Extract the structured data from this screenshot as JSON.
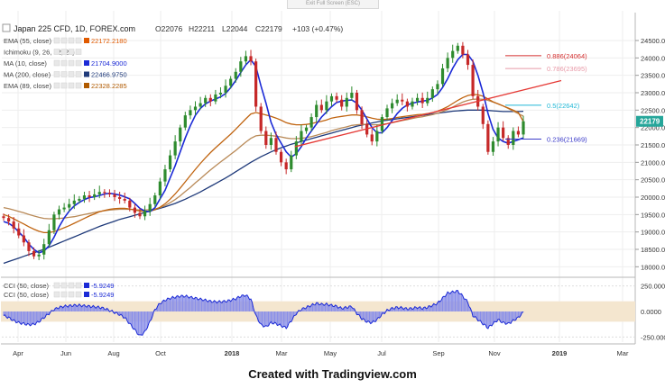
{
  "top_button": {
    "label": "Exit Full Screen (ESC)"
  },
  "header": {
    "symbol": "Japan 225 CFD, 1D, FOREX.com",
    "ohlc": [
      {
        "label": "O",
        "value": "22076",
        "color": "#3b3bc9"
      },
      {
        "label": "H",
        "value": "22211",
        "color": "#3b3bc9"
      },
      {
        "label": "L",
        "value": "22044",
        "color": "#3b3bc9"
      },
      {
        "label": "C",
        "value": "22179",
        "color": "#3b3bc9"
      }
    ],
    "change": "+103 (+0.47%)"
  },
  "indicator_legend": [
    {
      "label": "EMA (55, close)",
      "value": "22172.2180",
      "color": "#e05a00"
    },
    {
      "label": "Ichimoku (9, 26, 52, 26)",
      "value": "",
      "color": "#9a9a9a"
    },
    {
      "label": "MA (10, close)",
      "value": "21704.9000",
      "color": "#1b2ad6"
    },
    {
      "label": "MA (200, close)",
      "value": "22466.9750",
      "color": "#1f3a7a"
    },
    {
      "label": "EMA (89, close)",
      "value": "22328.2285",
      "color": "#b05a00"
    }
  ],
  "cci_legend": [
    {
      "label": "CCI (50, close)",
      "value": "-5.9249"
    },
    {
      "label": "CCI (50, close)",
      "value": "-5.9249"
    }
  ],
  "price_axis": {
    "ticks": [
      "24500.0",
      "24000.0",
      "23500.0",
      "23000.0",
      "22500.0",
      "22000.0",
      "21500.0",
      "21000.0",
      "20500.0",
      "20000.0",
      "19500.0",
      "19000.0",
      "18500.0",
      "18000.0"
    ],
    "last_price": "22179",
    "last_price_color": "#26a69a"
  },
  "cci_axis": {
    "ticks": [
      "250.000",
      "0.0000",
      "-250.000"
    ]
  },
  "x_axis": {
    "ticks": [
      "Apr",
      "Jun",
      "Aug",
      "Oct",
      "2018",
      "Mar",
      "May",
      "Jul",
      "Sep",
      "Nov",
      "2019",
      "Mar"
    ]
  },
  "fib_levels": [
    {
      "label": "0.886(24064)",
      "color": "#d32f2f"
    },
    {
      "label": "0.786(23695)",
      "color": "#e89aa8"
    },
    {
      "label": "0.5(22642)",
      "color": "#22b8d6"
    },
    {
      "label": "0.236(21669)",
      "color": "#3b3bc9"
    }
  ],
  "chart_data": {
    "type": "candlestick",
    "title": "Japan 225 CFD, 1D, FOREX.com",
    "ylim": [
      17750,
      25250
    ],
    "cci_ylim": [
      -300,
      300
    ],
    "x_ticks": [
      "Apr",
      "Jun",
      "Aug",
      "Oct",
      "2018",
      "Mar",
      "May",
      "Jul",
      "Sep",
      "Nov",
      "2019",
      "Mar"
    ],
    "close": [
      19400,
      19300,
      19100,
      18900,
      18700,
      18450,
      18300,
      18350,
      18650,
      19050,
      19500,
      19650,
      19700,
      19800,
      19900,
      19950,
      20050,
      20000,
      20080,
      20150,
      20120,
      20080,
      20000,
      19950,
      19900,
      19700,
      19550,
      19450,
      19600,
      19800,
      20050,
      20450,
      20800,
      21200,
      21600,
      22000,
      22350,
      22500,
      22600,
      22700,
      22850,
      22750,
      22950,
      23000,
      23200,
      23400,
      23600,
      23900,
      24050,
      23900,
      22600,
      21900,
      21500,
      21700,
      21300,
      21000,
      20800,
      21200,
      21600,
      21900,
      22000,
      22300,
      22650,
      22500,
      22750,
      22900,
      22800,
      22600,
      22850,
      23000,
      22500,
      22100,
      21800,
      21600,
      21900,
      22300,
      22550,
      22700,
      22800,
      22750,
      22600,
      22750,
      22850,
      22700,
      22850,
      23100,
      23250,
      23700,
      24000,
      24200,
      24350,
      24100,
      23800,
      22900,
      22600,
      22100,
      21300,
      21600,
      22000,
      21700,
      21500,
      21900,
      21800,
      22179
    ],
    "ma10": [
      19300,
      19250,
      19150,
      19000,
      18850,
      18650,
      18500,
      18400,
      18450,
      18600,
      18850,
      19150,
      19400,
      19600,
      19750,
      19850,
      19930,
      19990,
      20010,
      20050,
      20090,
      20110,
      20090,
      20060,
      20010,
      19950,
      19820,
      19680,
      19600,
      19580,
      19700,
      19950,
      20200,
      20550,
      20900,
      21300,
      21700,
      22050,
      22350,
      22550,
      22680,
      22760,
      22820,
      22880,
      22980,
      23150,
      23350,
      23580,
      23800,
      23950,
      23750,
      23200,
      22700,
      22150,
      21800,
      21550,
      21300,
      21150,
      21250,
      21450,
      21700,
      21900,
      22100,
      22300,
      22450,
      22600,
      22720,
      22760,
      22780,
      22790,
      22700,
      22500,
      22250,
      22000,
      21850,
      21850,
      22000,
      22200,
      22400,
      22550,
      22650,
      22700,
      22730,
      22760,
      22780,
      22850,
      22950,
      23150,
      23400,
      23700,
      23950,
      24100,
      24100,
      23900,
      23500,
      23000,
      22400,
      21950,
      21700,
      21600,
      21550,
      21600,
      21650,
      21705
    ],
    "ema55": [
      19500,
      19450,
      19380,
      19300,
      19230,
      19150,
      19080,
      19020,
      18980,
      18980,
      19010,
      19060,
      19120,
      19180,
      19250,
      19320,
      19390,
      19460,
      19520,
      19580,
      19620,
      19650,
      19670,
      19680,
      19680,
      19660,
      19630,
      19600,
      19590,
      19600,
      19640,
      19710,
      19810,
      19940,
      20090,
      20260,
      20440,
      20620,
      20800,
      20970,
      21130,
      21280,
      21420,
      21550,
      21680,
      21810,
      21950,
      22100,
      22250,
      22390,
      22430,
      22400,
      22360,
      22320,
      22270,
      22210,
      22140,
      22100,
      22080,
      22080,
      22090,
      22110,
      22150,
      22180,
      22220,
      22270,
      22300,
      22320,
      22340,
      22360,
      22360,
      22340,
      22310,
      22270,
      22240,
      22230,
      22240,
      22260,
      22290,
      22310,
      22330,
      22350,
      22370,
      22380,
      22400,
      22430,
      22470,
      22530,
      22600,
      22690,
      22780,
      22860,
      22920,
      22950,
      22940,
      22900,
      22820,
      22740,
      22680,
      22620,
      22560,
      22500,
      22430,
      22172
    ],
    "ema89": [
      19700,
      19670,
      19630,
      19590,
      19550,
      19500,
      19460,
      19420,
      19390,
      19380,
      19380,
      19390,
      19400,
      19420,
      19440,
      19470,
      19500,
      19530,
      19560,
      19590,
      19610,
      19630,
      19640,
      19650,
      19650,
      19650,
      19640,
      19630,
      19630,
      19640,
      19660,
      19700,
      19760,
      19840,
      19930,
      20040,
      20160,
      20280,
      20410,
      20530,
      20660,
      20780,
      20900,
      21010,
      21120,
      21230,
      21340,
      21460,
      21580,
      21690,
      21760,
      21780,
      21780,
      21770,
      21750,
      21730,
      21700,
      21680,
      21680,
      21690,
      21710,
      21740,
      21780,
      21820,
      21860,
      21910,
      21950,
      21990,
      22020,
      22060,
      22080,
      22090,
      22090,
      22080,
      22080,
      22090,
      22110,
      22140,
      22170,
      22200,
      22230,
      22260,
      22290,
      22310,
      22340,
      22370,
      22410,
      22460,
      22520,
      22590,
      22660,
      22730,
      22780,
      22810,
      22820,
      22810,
      22780,
      22730,
      22680,
      22620,
      22550,
      22470,
      22400,
      22328
    ],
    "ma200": [
      18100,
      18150,
      18200,
      18250,
      18300,
      18350,
      18400,
      18450,
      18500,
      18560,
      18620,
      18680,
      18740,
      18800,
      18860,
      18920,
      18980,
      19040,
      19100,
      19160,
      19210,
      19260,
      19310,
      19360,
      19400,
      19440,
      19480,
      19520,
      19560,
      19600,
      19640,
      19680,
      19720,
      19770,
      19820,
      19880,
      19940,
      20010,
      20080,
      20150,
      20230,
      20310,
      20390,
      20470,
      20550,
      20640,
      20730,
      20820,
      20910,
      21000,
      21080,
      21160,
      21230,
      21300,
      21360,
      21420,
      21470,
      21520,
      21560,
      21600,
      21640,
      21680,
      21720,
      21760,
      21800,
      21840,
      21880,
      21920,
      21960,
      22000,
      22040,
      22070,
      22100,
      22130,
      22160,
      22190,
      22210,
      22230,
      22250,
      22270,
      22290,
      22310,
      22330,
      22350,
      22370,
      22390,
      22410,
      22430,
      22450,
      22470,
      22480,
      22490,
      22500,
      22500,
      22500,
      22500,
      22490,
      22480,
      22470,
      22460,
      22460,
      22460,
      22460,
      22467
    ],
    "cci": [
      -40,
      -60,
      -90,
      -110,
      -120,
      -130,
      -125,
      -100,
      -60,
      -20,
      20,
      40,
      50,
      55,
      60,
      60,
      55,
      50,
      45,
      40,
      30,
      10,
      -10,
      -30,
      -60,
      -120,
      -180,
      -240,
      -200,
      -100,
      20,
      80,
      110,
      130,
      140,
      150,
      150,
      140,
      130,
      120,
      110,
      100,
      95,
      95,
      100,
      110,
      125,
      150,
      160,
      120,
      -40,
      -130,
      -150,
      -110,
      -120,
      -140,
      -160,
      -90,
      -20,
      20,
      40,
      60,
      80,
      70,
      70,
      60,
      50,
      30,
      40,
      50,
      -20,
      -70,
      -100,
      -110,
      -80,
      -30,
      10,
      30,
      40,
      35,
      25,
      30,
      40,
      30,
      40,
      60,
      80,
      130,
      180,
      190,
      200,
      150,
      90,
      -40,
      -80,
      -120,
      -160,
      -120,
      -80,
      -110,
      -120,
      -90,
      -60,
      -6
    ],
    "fib_values": [
      24064,
      23695,
      22642,
      21669
    ],
    "trendline": {
      "from": [
        47,
        21450
      ],
      "to": [
        95,
        23350
      ]
    }
  }
}
